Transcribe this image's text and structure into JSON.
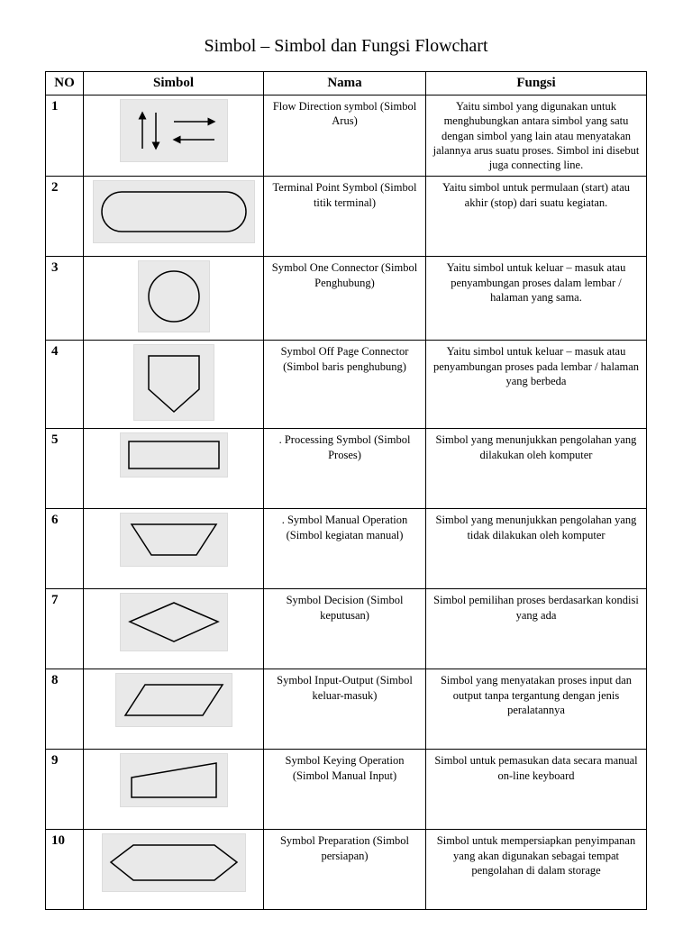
{
  "title": "Simbol – Simbol dan Fungsi Flowchart",
  "columns": [
    "NO",
    "Simbol",
    "Nama",
    "Fungsi"
  ],
  "rows": [
    {
      "no": "1",
      "shape": "arrows",
      "nama": "Flow Direction symbol (Simbol Arus)",
      "fungsi": "Yaitu simbol yang digunakan untuk menghubungkan antara simbol yang satu dengan simbol yang lain atau menyatakan jalannya arus suatu proses. Simbol ini disebut juga connecting line."
    },
    {
      "no": "2",
      "shape": "terminator",
      "nama": "Terminal Point Symbol (Simbol titik terminal)",
      "fungsi": "Yaitu simbol untuk permulaan (start) atau akhir (stop) dari suatu kegiatan."
    },
    {
      "no": "3",
      "shape": "circle",
      "nama": "Symbol One Connector (Simbol Penghubung)",
      "fungsi": "Yaitu simbol untuk keluar – masuk atau penyambungan proses dalam lembar / halaman yang sama."
    },
    {
      "no": "4",
      "shape": "offpage",
      "nama": "Symbol Off Page Connector (Simbol baris penghubung)",
      "fungsi": "Yaitu simbol untuk keluar – masuk atau penyambungan proses pada lembar / halaman yang berbeda"
    },
    {
      "no": "5",
      "shape": "rect",
      "nama": ". Processing Symbol (Simbol Proses)",
      "fungsi": "Simbol yang menunjukkan pengolahan yang dilakukan oleh komputer"
    },
    {
      "no": "6",
      "shape": "manualop",
      "nama": ". Symbol Manual Operation (Simbol kegiatan manual)",
      "fungsi": "Simbol yang menunjukkan pengolahan yang tidak dilakukan oleh komputer"
    },
    {
      "no": "7",
      "shape": "decision",
      "nama": "Symbol Decision (Simbol keputusan)",
      "fungsi": "Simbol pemilihan proses berdasarkan kondisi yang ada"
    },
    {
      "no": "8",
      "shape": "io",
      "nama": "Symbol Input-Output (Simbol keluar-masuk)",
      "fungsi": "Simbol yang menyatakan proses input dan output tanpa tergantung dengan jenis peralatannya"
    },
    {
      "no": "9",
      "shape": "keying",
      "nama": "Symbol Keying Operation (Simbol Manual Input)",
      "fungsi": "Simbol untuk pemasukan data secara manual on-line keyboard"
    },
    {
      "no": "10",
      "shape": "preparation",
      "nama": "Symbol Preparation (Simbol persiapan)",
      "fungsi": "Simbol untuk mempersiapkan penyimpanan yang akan digunakan sebagai tempat pengolahan di dalam storage"
    }
  ],
  "style": {
    "stroke": "#000000",
    "stroke_width": 1.5,
    "symbox_bg": "#e9e9e9"
  }
}
